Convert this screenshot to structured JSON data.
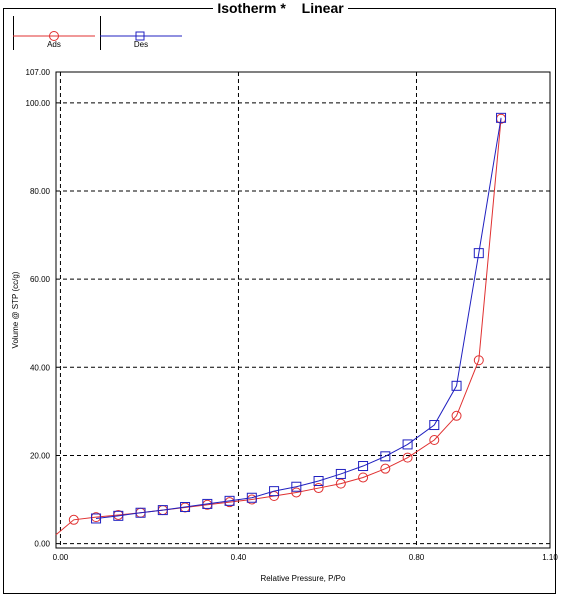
{
  "window": {
    "title_main": "Isotherm",
    "title_marker": "*",
    "title_mode": "Linear"
  },
  "legend": [
    {
      "label": "Ads",
      "color": "#e03030",
      "marker": "circle"
    },
    {
      "label": "Des",
      "color": "#2020c0",
      "marker": "square"
    }
  ],
  "chart_data": {
    "type": "line",
    "title": "Isotherm * Linear",
    "xlabel": "Relative Pressure, P/Po",
    "ylabel": "Volume @ STP (cc/g)",
    "xlim": [
      -0.01,
      1.1
    ],
    "ylim": [
      -1.0,
      107.0
    ],
    "x_ticks": [
      "0.00",
      "0.40",
      "0.80",
      "1.10"
    ],
    "y_ticks": [
      "0.00",
      "20.00",
      "40.00",
      "60.00",
      "80.00",
      "100.00",
      "107.00"
    ],
    "x_tick_values": [
      0.0,
      0.4,
      0.8,
      1.1
    ],
    "y_tick_values": [
      0.0,
      20.0,
      40.0,
      60.0,
      80.0,
      100.0,
      107.0
    ],
    "grid": true,
    "series": [
      {
        "name": "Ads",
        "color": "#e03030",
        "marker": "circle",
        "line_start": [
          -0.01,
          2.0
        ],
        "x": [
          0.03,
          0.08,
          0.13,
          0.18,
          0.23,
          0.28,
          0.33,
          0.38,
          0.43,
          0.48,
          0.53,
          0.58,
          0.63,
          0.68,
          0.73,
          0.78,
          0.84,
          0.89,
          0.94,
          0.99
        ],
        "y": [
          5.4,
          6.0,
          6.5,
          7.0,
          7.6,
          8.2,
          8.8,
          9.4,
          10.0,
          10.8,
          11.6,
          12.6,
          13.6,
          15.0,
          17.0,
          19.5,
          23.5,
          29.0,
          41.6,
          96.4
        ]
      },
      {
        "name": "Des",
        "color": "#2020c0",
        "marker": "square",
        "x": [
          0.08,
          0.13,
          0.18,
          0.23,
          0.28,
          0.33,
          0.38,
          0.43,
          0.48,
          0.53,
          0.58,
          0.63,
          0.68,
          0.73,
          0.78,
          0.84,
          0.89,
          0.94,
          0.99
        ],
        "y": [
          5.7,
          6.3,
          7.0,
          7.6,
          8.3,
          9.0,
          9.7,
          10.4,
          11.9,
          12.9,
          14.2,
          15.8,
          17.6,
          19.8,
          22.5,
          26.9,
          35.8,
          65.9,
          96.6
        ]
      }
    ]
  }
}
